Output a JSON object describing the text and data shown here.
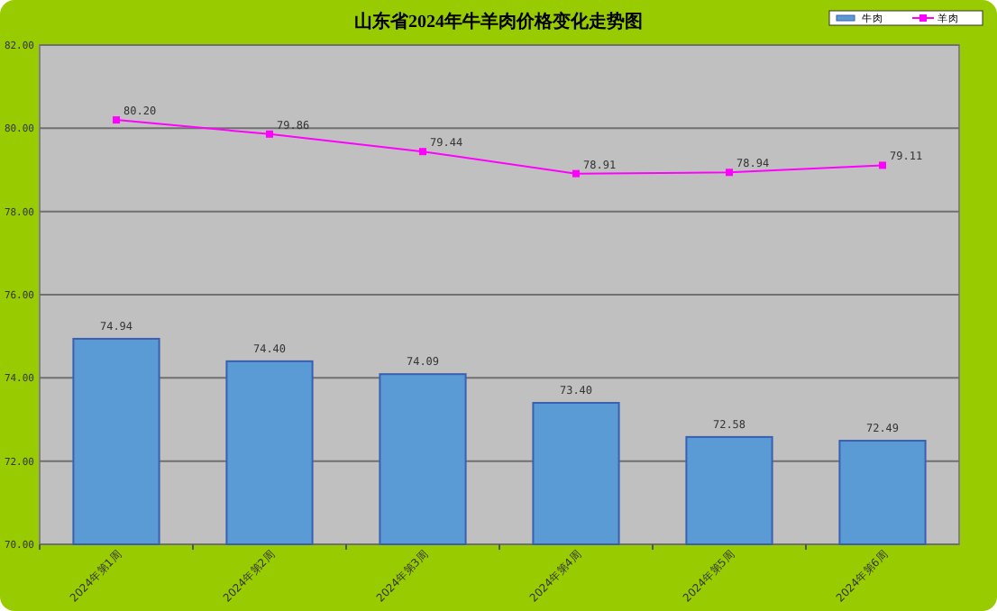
{
  "chart_data": {
    "type": "bar",
    "title": "山东省2024年牛羊肉价格变化走势图",
    "categories": [
      "2024年第1周",
      "2024年第2周",
      "2024年第3周",
      "2024年第4周",
      "2024年第5周",
      "2024年第6周"
    ],
    "series": [
      {
        "name": "牛肉",
        "color": "#5b9bd5",
        "values": [
          74.94,
          74.4,
          74.09,
          73.4,
          72.58,
          72.49
        ],
        "value_labels": [
          "74.94",
          "74.40",
          "74.09",
          "73.40",
          "72.58",
          "72.49"
        ]
      },
      {
        "name": "羊肉",
        "type": "line",
        "color": "#ff00ff",
        "marker": "square",
        "values": [
          80.2,
          79.86,
          79.44,
          78.91,
          78.94,
          79.11
        ],
        "value_labels": [
          "80.20",
          "79.86",
          "79.44",
          "78.91",
          "78.94",
          "79.11"
        ]
      }
    ],
    "ylim": [
      70,
      82
    ],
    "yticks": [
      {
        "value": 70,
        "label": "70.00"
      },
      {
        "value": 72,
        "label": "72.00"
      },
      {
        "value": 74,
        "label": "74.00"
      },
      {
        "value": 76,
        "label": "76.00"
      },
      {
        "value": 78,
        "label": "78.00"
      },
      {
        "value": 80,
        "label": "80.00"
      },
      {
        "value": 82,
        "label": "82.00"
      }
    ],
    "grid": "y",
    "legend": "top right"
  }
}
